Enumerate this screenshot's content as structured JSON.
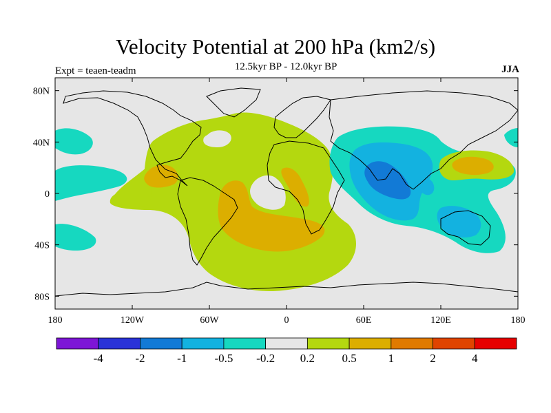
{
  "title": "Velocity Potential at 200 hPa (km2/s)",
  "subtitle": "12.5kyr BP - 12.0kyr BP",
  "experiment": "Expt = teaen-teadm",
  "season": "JJA",
  "map": {
    "projection": "cylindrical-equidistant",
    "lon_range": [
      -180,
      180
    ],
    "lat_range": [
      -90,
      90
    ],
    "x_ticks": [
      {
        "value": -180,
        "label": "180"
      },
      {
        "value": -120,
        "label": "120W"
      },
      {
        "value": -60,
        "label": "60W"
      },
      {
        "value": 0,
        "label": "0"
      },
      {
        "value": 60,
        "label": "60E"
      },
      {
        "value": 120,
        "label": "120E"
      },
      {
        "value": 180,
        "label": "180"
      }
    ],
    "y_ticks": [
      {
        "value": 80,
        "label": "80N"
      },
      {
        "value": 40,
        "label": "40N"
      },
      {
        "value": 0,
        "label": "0"
      },
      {
        "value": -40,
        "label": "40S"
      },
      {
        "value": -80,
        "label": "80S"
      }
    ]
  },
  "colorbar": {
    "colors": [
      "#7d16d6",
      "#2a33d8",
      "#127ad6",
      "#13b2e0",
      "#16d8c0",
      "#e6e6e6",
      "#b4d80f",
      "#dcae00",
      "#e07a00",
      "#e04400",
      "#e60000"
    ],
    "labels": [
      "-4",
      "-2",
      "-1",
      "-0.5",
      "-0.2",
      "0.2",
      "0.5",
      "1",
      "2",
      "4"
    ]
  },
  "colors": {
    "background_field": "#e6e6e6",
    "negative_weak": "#16d8c0",
    "negative_mid": "#13b2e0",
    "negative_strong": "#127ad6",
    "positive_weak": "#b4d80f",
    "positive_mid": "#dcae00"
  }
}
